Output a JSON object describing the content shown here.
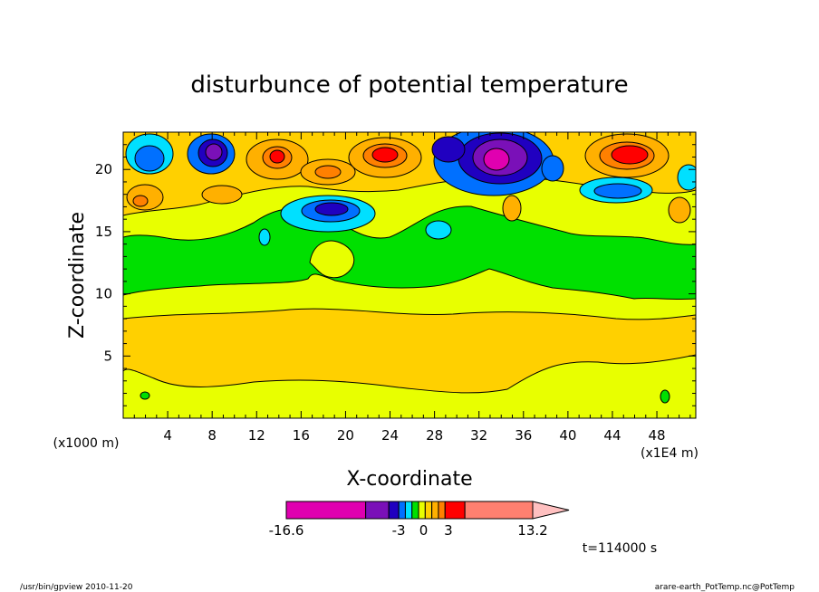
{
  "chart_data": {
    "type": "heatmap",
    "title": "disturbunce of potential temperature",
    "xlabel": "X-coordinate",
    "ylabel": "Z-coordinate",
    "x_unit_label": "(x1E4 m)",
    "y_unit_label": "(x1000 m)",
    "xlim": [
      0,
      51.5
    ],
    "ylim": [
      0,
      23
    ],
    "x_ticks": [
      "4",
      "8",
      "12",
      "16",
      "20",
      "24",
      "28",
      "32",
      "36",
      "40",
      "44",
      "48"
    ],
    "y_ticks": [
      "5",
      "10",
      "15",
      "20"
    ],
    "x_tick_values": [
      4,
      8,
      12,
      16,
      20,
      24,
      28,
      32,
      36,
      40,
      44,
      48
    ],
    "y_tick_values": [
      5,
      10,
      15,
      20
    ],
    "colorbar": {
      "labels": [
        "-16.6",
        "-3",
        "0",
        "3",
        "13.2"
      ],
      "label_values": [
        -16.6,
        -3,
        0,
        3,
        13.2
      ],
      "min": -16.6,
      "max": 13.2,
      "colors": [
        "#e000b0",
        "#7a10b8",
        "#2000c0",
        "#0070ff",
        "#00e0ff",
        "#00e000",
        "#e8ff00",
        "#ffd000",
        "#ffb000",
        "#ff8000",
        "#ff0000",
        "#ff8070",
        "#ffc0c0"
      ]
    },
    "grid": false,
    "legend": "colorbar-bottom"
  },
  "annotations": {
    "time": "t=114000 s",
    "footer_left": "/usr/bin/gpview   2010-11-20",
    "footer_right": "arare-earth_PotTemp.nc@PotTemp"
  }
}
